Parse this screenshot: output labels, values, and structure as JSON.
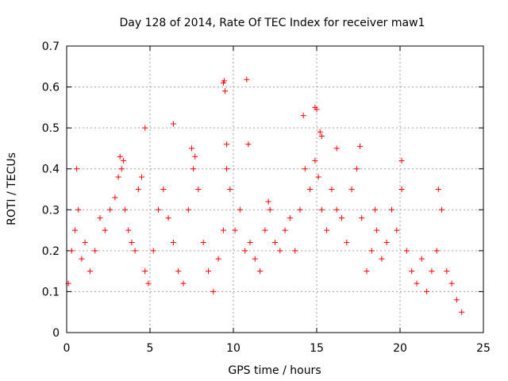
{
  "chart_data": {
    "type": "scatter",
    "title": "Day 128 of 2014, Rate Of TEC Index for receiver maw1",
    "xlabel": "GPS time / hours",
    "ylabel": "ROTI / TECUs",
    "xlim": [
      0,
      25
    ],
    "ylim": [
      0,
      0.7
    ],
    "xticks": [
      "0",
      "5",
      "10",
      "15",
      "20",
      "25"
    ],
    "yticks": [
      "0",
      "0.1",
      "0.2",
      "0.3",
      "0.4",
      "0.5",
      "0.6",
      "0.7"
    ],
    "grid": true,
    "marker": "+",
    "color": "#ff0000",
    "series": [
      {
        "x": [
          0.1,
          0.3,
          0.5,
          0.7,
          0.9,
          1.1,
          1.4,
          1.7,
          2.0,
          2.3,
          2.6,
          2.9,
          3.1,
          3.3,
          3.5,
          3.7,
          3.9,
          4.1,
          4.3,
          4.5,
          4.7,
          4.9,
          5.2,
          5.5,
          5.8,
          6.1,
          6.4,
          6.7,
          7.0,
          7.3,
          7.6,
          7.9,
          8.2,
          8.5,
          8.8,
          9.1,
          9.4,
          9.6,
          9.8,
          10.1,
          10.4,
          10.7,
          11.0,
          11.3,
          11.6,
          11.9,
          12.2,
          12.5,
          12.8,
          13.1,
          13.4,
          13.7,
          14.0,
          14.3,
          14.6,
          14.9,
          15.1,
          15.3,
          15.6,
          15.9,
          16.2,
          16.5,
          16.8,
          17.1,
          17.4,
          17.7,
          18.0,
          18.3,
          18.6,
          18.9,
          19.2,
          19.5,
          19.8,
          20.1,
          20.4,
          20.7,
          21.0,
          21.3,
          21.6,
          21.9,
          22.2,
          22.5,
          22.8,
          23.1,
          23.4,
          23.7,
          9.4,
          9.45,
          9.5,
          10.8,
          4.7,
          6.4,
          14.9,
          15.0,
          15.2,
          14.2,
          16.2,
          17.6,
          9.6,
          10.9,
          20.1,
          22.3,
          3.2,
          3.4,
          15.3,
          0.6,
          7.5,
          7.7,
          12.1,
          18.5
        ],
        "y": [
          0.12,
          0.2,
          0.25,
          0.3,
          0.18,
          0.22,
          0.15,
          0.2,
          0.28,
          0.25,
          0.3,
          0.33,
          0.38,
          0.4,
          0.3,
          0.25,
          0.22,
          0.2,
          0.35,
          0.38,
          0.15,
          0.12,
          0.2,
          0.3,
          0.35,
          0.28,
          0.22,
          0.15,
          0.12,
          0.3,
          0.4,
          0.35,
          0.22,
          0.15,
          0.1,
          0.18,
          0.25,
          0.4,
          0.35,
          0.25,
          0.3,
          0.2,
          0.22,
          0.18,
          0.15,
          0.25,
          0.3,
          0.22,
          0.2,
          0.25,
          0.28,
          0.2,
          0.3,
          0.4,
          0.35,
          0.42,
          0.38,
          0.3,
          0.25,
          0.35,
          0.3,
          0.28,
          0.22,
          0.35,
          0.4,
          0.28,
          0.15,
          0.2,
          0.25,
          0.18,
          0.22,
          0.3,
          0.25,
          0.35,
          0.2,
          0.15,
          0.12,
          0.18,
          0.1,
          0.15,
          0.2,
          0.3,
          0.15,
          0.12,
          0.08,
          0.05,
          0.61,
          0.615,
          0.59,
          0.618,
          0.5,
          0.51,
          0.55,
          0.545,
          0.49,
          0.53,
          0.45,
          0.455,
          0.46,
          0.46,
          0.42,
          0.35,
          0.43,
          0.42,
          0.48,
          0.4,
          0.45,
          0.43,
          0.32,
          0.3
        ]
      }
    ]
  }
}
